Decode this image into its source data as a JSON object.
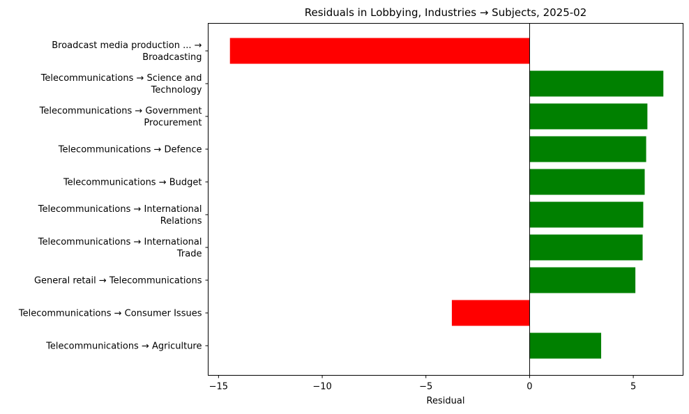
{
  "chart_data": {
    "type": "bar",
    "orientation": "horizontal",
    "title": "Residuals in Lobbying, Industries → Subjects, 2025-02",
    "xlabel": "Residual",
    "ylabel": "",
    "xlim": [
      -15.5,
      7.4
    ],
    "xticks": [
      -15,
      -10,
      -5,
      0,
      5
    ],
    "xtick_labels": [
      "−15",
      "−10",
      "−5",
      "0",
      "5"
    ],
    "grid": false,
    "categories": [
      [
        "Broadcast media production ... →",
        "Broadcasting"
      ],
      [
        "Telecommunications → Science and",
        "Technology"
      ],
      [
        "Telecommunications → Government",
        "Procurement"
      ],
      [
        "Telecommunications → Defence"
      ],
      [
        "Telecommunications → Budget"
      ],
      [
        "Telecommunications → International",
        "Relations"
      ],
      [
        "Telecommunications → International",
        "Trade"
      ],
      [
        "General retail → Telecommunications"
      ],
      [
        "Telecommunications → Consumer Issues"
      ],
      [
        "Telecommunications → Agriculture"
      ]
    ],
    "values": [
      -14.45,
      6.45,
      5.68,
      5.62,
      5.55,
      5.48,
      5.45,
      5.1,
      -3.75,
      3.45
    ],
    "colors": {
      "positive": "#008000",
      "negative": "#ff0000"
    },
    "zero_line": true
  }
}
